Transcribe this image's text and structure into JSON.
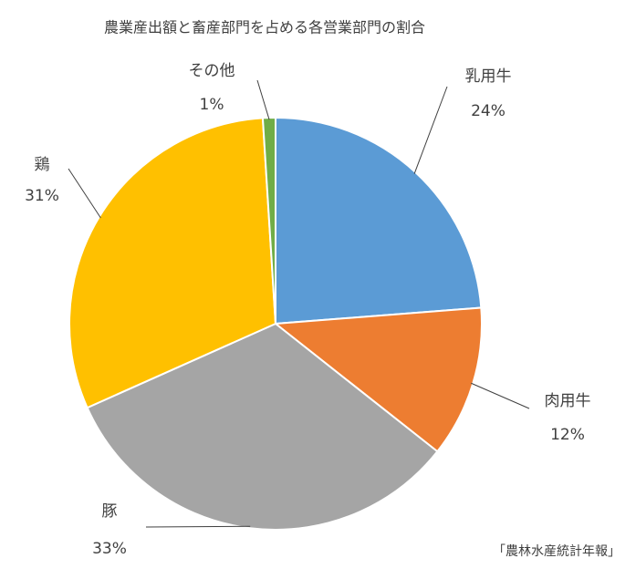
{
  "chart_data": {
    "type": "pie",
    "title": "農業産出額と畜産部門を占める各営業部門の割合",
    "categories": [
      "乳用牛",
      "肉用牛",
      "豚",
      "鶏",
      "その他"
    ],
    "values": [
      24,
      12,
      33,
      31,
      1
    ],
    "value_labels": [
      "24%",
      "12%",
      "33%",
      "31%",
      "1%"
    ],
    "colors": [
      "#5b9bd5",
      "#ed7d31",
      "#a5a5a5",
      "#ffc000",
      "#70ad47"
    ],
    "source": "「農林水産統計年報」"
  }
}
